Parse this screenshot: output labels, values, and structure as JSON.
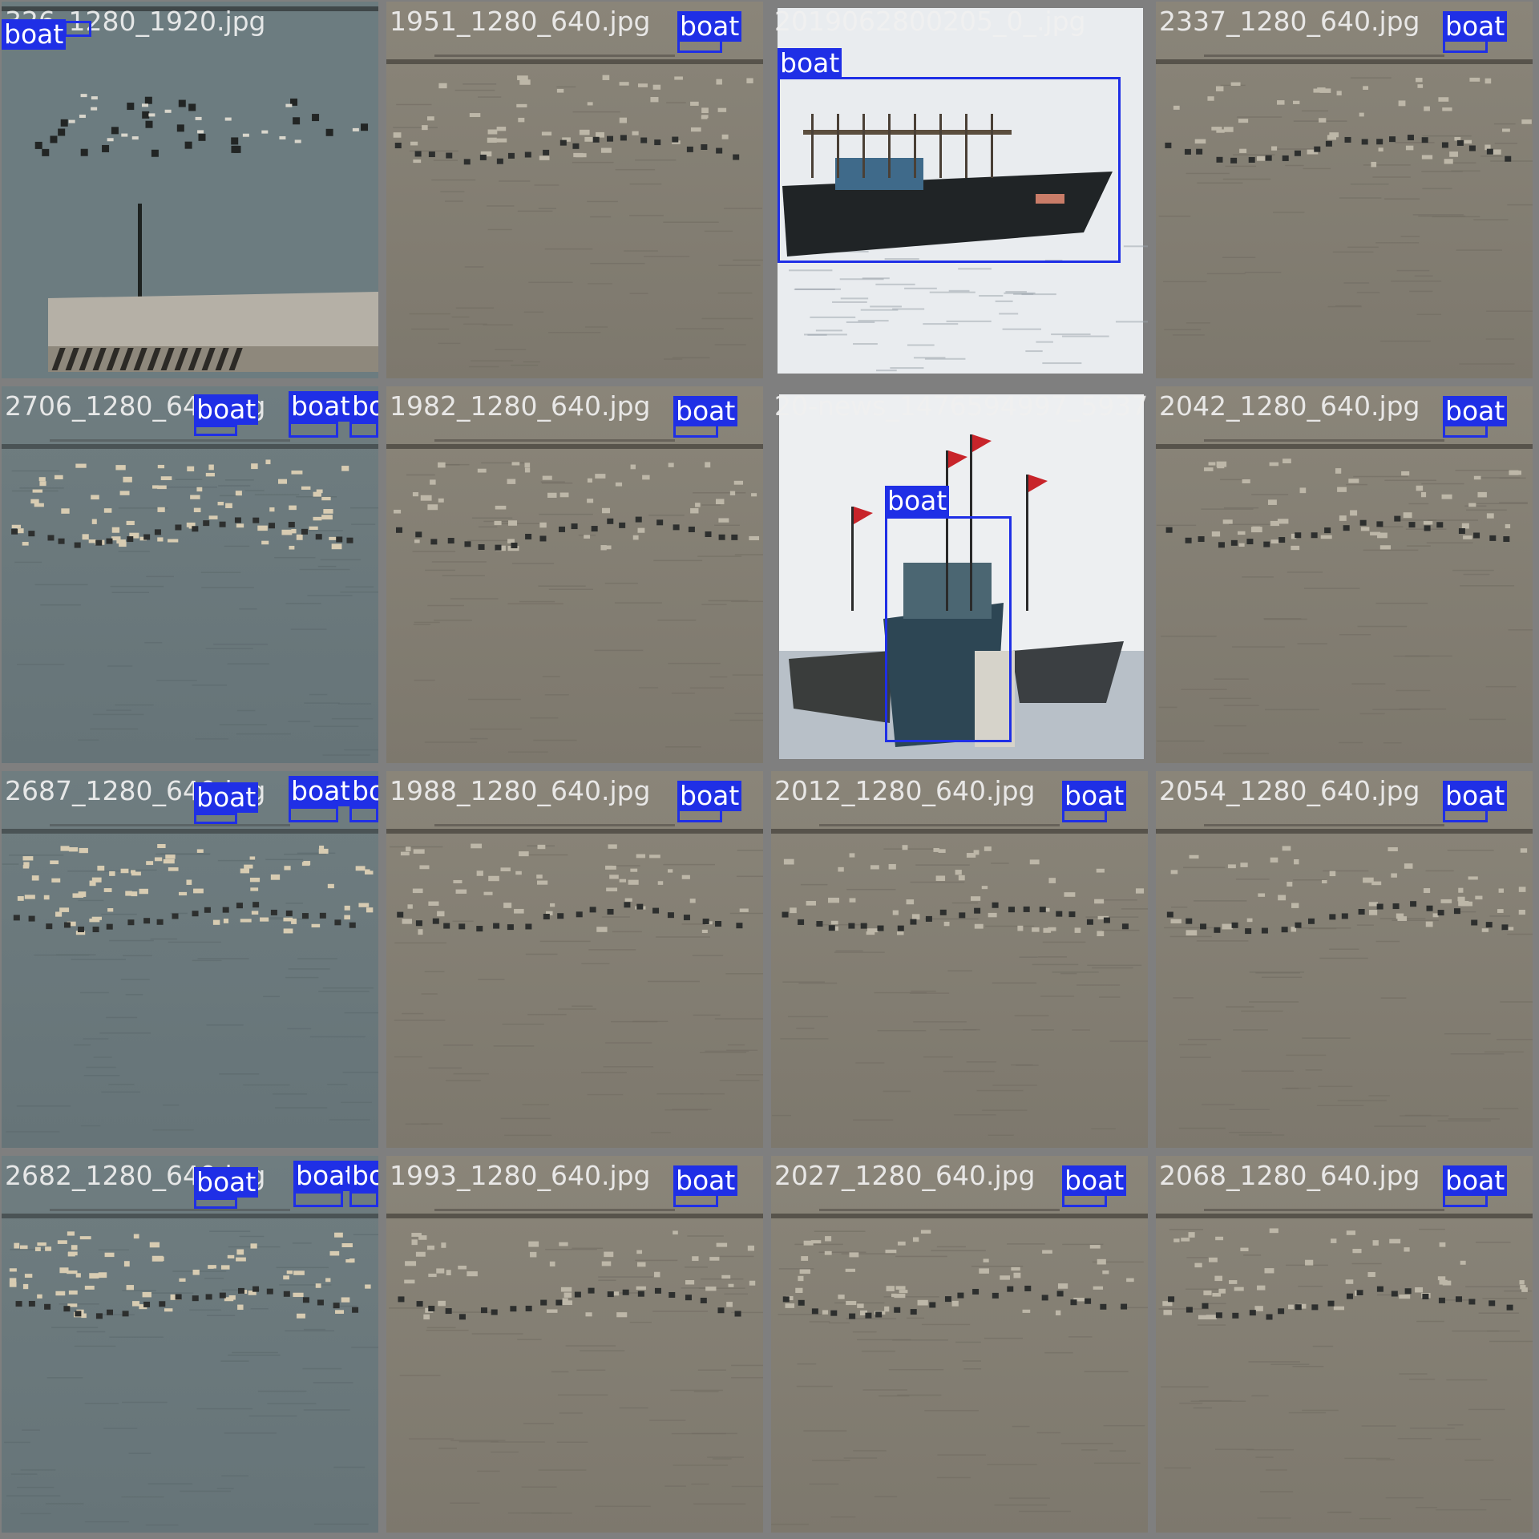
{
  "mosaic": {
    "tiles": [
      {
        "name": "326_1280_1920.jpg",
        "scene": "harbor",
        "labels": [
          "boat"
        ]
      },
      {
        "name": "1951_1280_640.jpg",
        "scene": "sea-tan",
        "labels": [
          "boat"
        ]
      },
      {
        "name": "2019062800205_0_.jpg",
        "scene": "fishing-boat",
        "labels": [
          "boat"
        ]
      },
      {
        "name": "2337_1280_640.jpg",
        "scene": "sea-tan",
        "labels": [
          "boat"
        ]
      },
      {
        "name": "2706_1280_640.jpg",
        "scene": "sea-blue",
        "labels": [
          "boat",
          "boat",
          "boat"
        ]
      },
      {
        "name": "1982_1280_640.jpg",
        "scene": "sea-tan",
        "labels": [
          "boat"
        ]
      },
      {
        "name": "20-news_1476594997_5937",
        "scene": "trawlers",
        "labels": [
          "boat"
        ]
      },
      {
        "name": "2042_1280_640.jpg",
        "scene": "sea-tan",
        "labels": [
          "boat"
        ]
      },
      {
        "name": "2687_1280_640.jpg",
        "scene": "sea-blue",
        "labels": [
          "boat",
          "boat",
          "boat"
        ]
      },
      {
        "name": "1988_1280_640.jpg",
        "scene": "sea-tan",
        "labels": [
          "boat"
        ]
      },
      {
        "name": "2012_1280_640.jpg",
        "scene": "sea-tan",
        "labels": [
          "boat"
        ]
      },
      {
        "name": "2054_1280_640.jpg",
        "scene": "sea-tan",
        "labels": [
          "boat"
        ]
      },
      {
        "name": "2682_1280_640.jpg",
        "scene": "sea-blue",
        "labels": [
          "boat",
          "boat",
          "boat"
        ]
      },
      {
        "name": "1993_1280_640.jpg",
        "scene": "sea-tan",
        "labels": [
          "boat"
        ]
      },
      {
        "name": "2027_1280_640.jpg",
        "scene": "sea-tan",
        "labels": [
          "boat"
        ]
      },
      {
        "name": "2068_1280_640.jpg",
        "scene": "sea-tan",
        "labels": [
          "boat"
        ]
      }
    ]
  },
  "colors": {
    "box": "#1f2fe6",
    "label_text": "#ffffff",
    "tile_border": "#7f7f7f"
  }
}
